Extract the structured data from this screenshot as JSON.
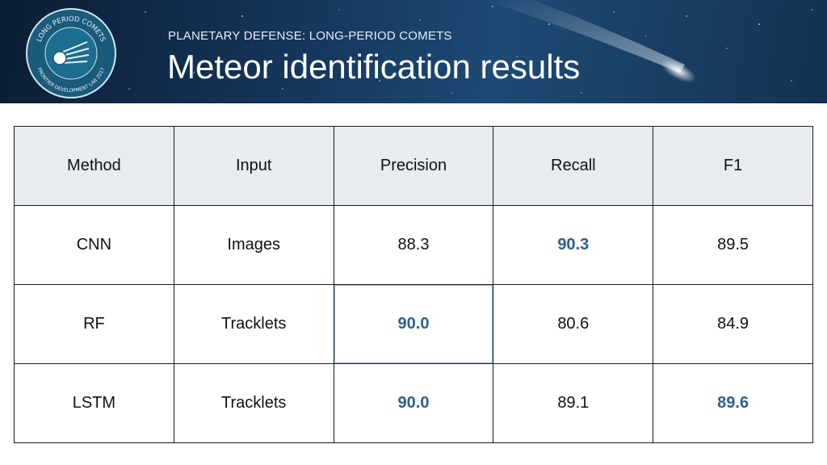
{
  "header": {
    "badge_top_text": "LONG PERIOD COMETS",
    "badge_bottom_text": "FRONTIER DEVELOPMENT LAB 2017",
    "subtitle": "PLANETARY DEFENSE: LONG-PERIOD COMETS",
    "title": "Meteor identification results"
  },
  "colors": {
    "highlight": "#2f5f8a",
    "header_bg": "#e8ecf0",
    "banner_bg": "#15355a"
  },
  "table": {
    "columns": [
      "Method",
      "Input",
      "Precision",
      "Recall",
      "F1"
    ],
    "rows": [
      {
        "method": "CNN",
        "input": "Images",
        "precision": "88.3",
        "recall": "90.3",
        "f1": "89.5"
      },
      {
        "method": "RF",
        "input": "Tracklets",
        "precision": "90.0",
        "recall": "80.6",
        "f1": "84.9"
      },
      {
        "method": "LSTM",
        "input": "Tracklets",
        "precision": "90.0",
        "recall": "89.1",
        "f1": "89.6"
      }
    ]
  }
}
